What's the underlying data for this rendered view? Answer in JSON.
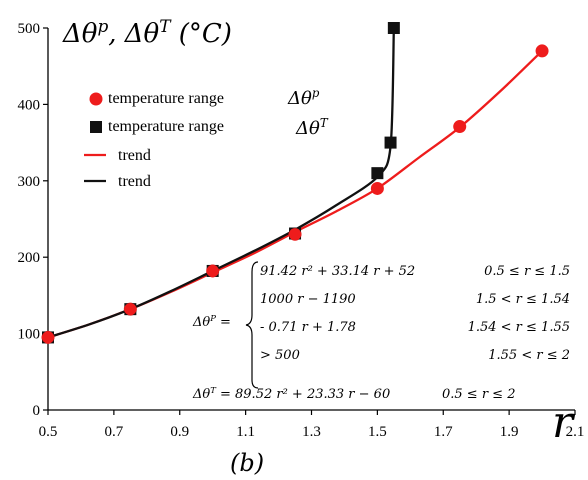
{
  "chart_data": {
    "type": "scatter",
    "title": "",
    "ylabel": "Δθ^p, Δθ^T (°C)",
    "xlabel": "r",
    "caption": "(b)",
    "xlim": [
      0.5,
      2.1
    ],
    "ylim": [
      0,
      500
    ],
    "xticks": [
      "0.5",
      "0.7",
      "0.9",
      "1.1",
      "1.3",
      "1.5",
      "1.7",
      "1.9",
      "2.1"
    ],
    "yticks": [
      "0",
      "100",
      "200",
      "300",
      "400",
      "500"
    ],
    "colors": {
      "p": "#ee1c1c",
      "T": "#111111"
    },
    "legend": [
      {
        "label": "temperature range",
        "symbol": "Δθ^p",
        "marker": "circle"
      },
      {
        "label": "temperature range",
        "symbol": "Δθ^T",
        "marker": "square"
      },
      {
        "label": "trend",
        "marker": "line-red"
      },
      {
        "label": "trend",
        "marker": "line-black"
      }
    ],
    "series": [
      {
        "key": "p",
        "marker": "circle",
        "x": [
          0.5,
          0.75,
          1.0,
          1.25,
          1.5,
          1.75,
          2.0
        ],
        "y": [
          95,
          132,
          182,
          230,
          290,
          371,
          470
        ]
      },
      {
        "key": "T",
        "marker": "square",
        "x": [
          0.5,
          0.75,
          1.0,
          1.25,
          1.5,
          1.54,
          1.55
        ],
        "y": [
          95,
          132,
          182,
          231,
          310,
          350,
          500
        ]
      }
    ],
    "trends": [
      {
        "key": "p",
        "x": [
          0.5,
          0.625,
          0.75,
          0.875,
          1.0,
          1.125,
          1.25,
          1.375,
          1.5,
          1.625,
          1.75,
          1.875,
          2.0
        ],
        "y": [
          95,
          112,
          132,
          155,
          180,
          205,
          233,
          260,
          290,
          330,
          370,
          418,
          470
        ]
      },
      {
        "key": "T",
        "x": [
          0.5,
          0.625,
          0.75,
          0.875,
          1.0,
          1.125,
          1.25,
          1.375,
          1.5,
          1.54,
          1.55
        ],
        "y": [
          95,
          112,
          132,
          156,
          182,
          208,
          236,
          268,
          305,
          345,
          500
        ]
      }
    ],
    "equations": {
      "p_lhs": "Δθ^P =",
      "p_cases": [
        {
          "expr": "91.42 r² + 33.14 r + 52",
          "cond": "0.5 ≤ r ≤ 1.5"
        },
        {
          "expr": "1000 r − 1190",
          "cond": "1.5 < r ≤ 1.54"
        },
        {
          "expr": "- 0.71 r + 1.78",
          "cond": "1.54 < r ≤ 1.55"
        },
        {
          "expr": "> 500",
          "cond": "1.55 < r ≤ 2"
        }
      ],
      "t_expr": "Δθ^T = 89.52 r² + 23.33 r − 60",
      "t_cond": "0.5 ≤ r ≤ 2"
    }
  }
}
